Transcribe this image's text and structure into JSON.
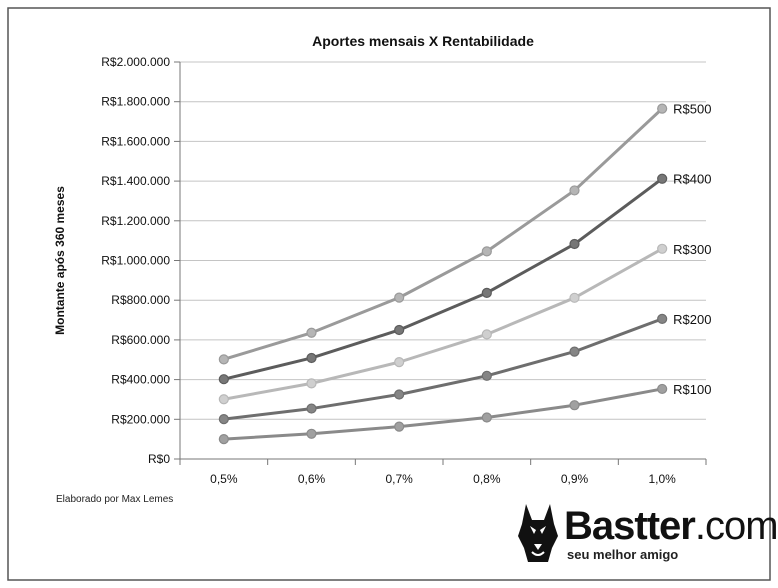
{
  "chart_data": {
    "type": "line",
    "title": "Aportes mensais X Rentabilidade",
    "xlabel": "",
    "ylabel": "Montante após 360 meses",
    "categories": [
      "0,5%",
      "0,6%",
      "0,7%",
      "0,8%",
      "0,9%",
      "1,0%"
    ],
    "ylim": [
      0,
      2000000
    ],
    "yticks": [
      "R$0",
      "R$200.000",
      "R$400.000",
      "R$600.000",
      "R$800.000",
      "R$1.000.000",
      "R$1.200.000",
      "R$1.400.000",
      "R$1.600.000",
      "R$1.800.000",
      "R$2.000.000"
    ],
    "ytick_values": [
      0,
      200000,
      400000,
      600000,
      800000,
      1000000,
      1200000,
      1400000,
      1600000,
      1800000,
      2000000
    ],
    "grid": true,
    "series": [
      {
        "name": "R$500",
        "values": [
          502000,
          636000,
          813000,
          1046000,
          1353000,
          1765000
        ],
        "color": "#9a9a9a",
        "marker": "#b5b5b5"
      },
      {
        "name": "R$400",
        "values": [
          402000,
          509000,
          650000,
          837000,
          1083000,
          1412000
        ],
        "color": "#5c5c5c",
        "marker": "#777777"
      },
      {
        "name": "R$300",
        "values": [
          301000,
          381000,
          488000,
          628000,
          812000,
          1059000
        ],
        "color": "#b8b8b8",
        "marker": "#cfcfcf"
      },
      {
        "name": "R$200",
        "values": [
          201000,
          254000,
          325000,
          419000,
          541000,
          706000
        ],
        "color": "#6e6e6e",
        "marker": "#858585"
      },
      {
        "name": "R$100",
        "values": [
          100000,
          127000,
          163000,
          209000,
          271000,
          353000
        ],
        "color": "#8a8a8a",
        "marker": "#a0a0a0"
      }
    ],
    "legend": "inline-right"
  },
  "footer": {
    "credit": "Elaborado por Max Lemes",
    "brand_bold": "Bastter",
    "brand_suffix": ".com",
    "brand_tagline": "seu melhor amigo"
  }
}
